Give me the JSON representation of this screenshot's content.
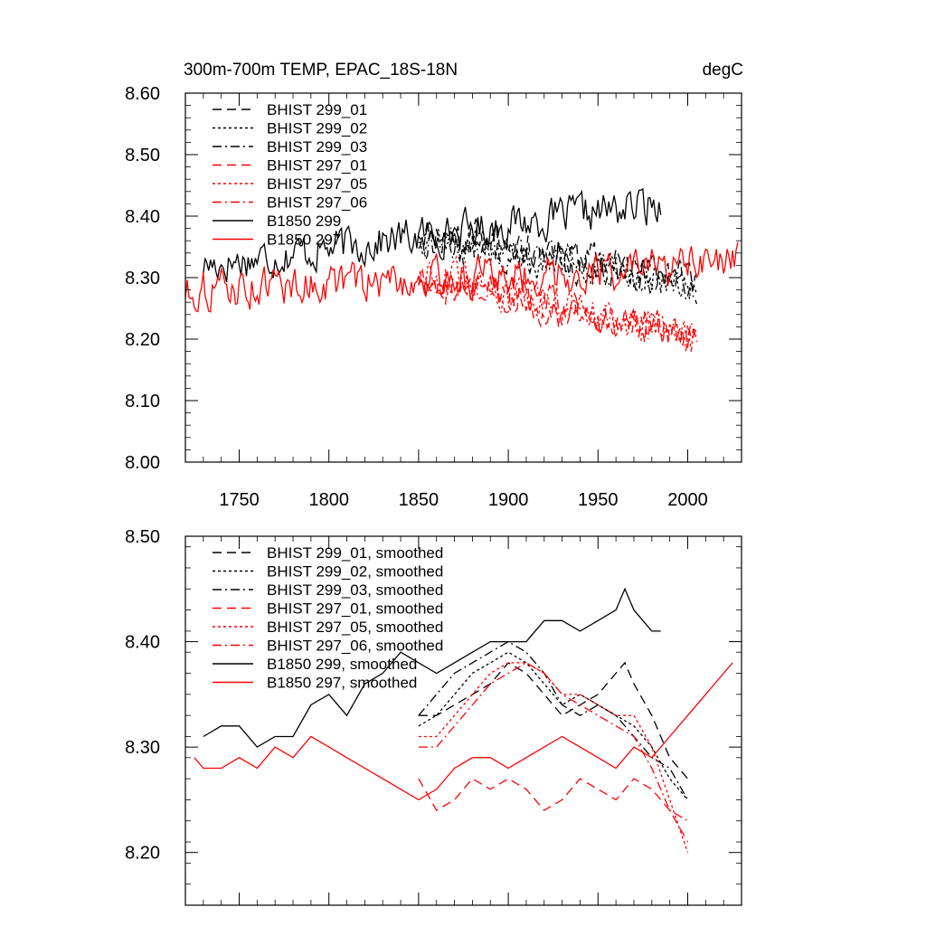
{
  "chart_data": [
    {
      "type": "line",
      "title": "300m-700m TEMP, EPAC_18S-18N",
      "units": "degC",
      "xlabel": "",
      "ylabel": "",
      "xlim": [
        1720,
        2030
      ],
      "ylim": [
        8.0,
        8.6
      ],
      "x_ticks": [
        1750,
        1800,
        1850,
        1900,
        1950,
        2000
      ],
      "x_tick_labels": [
        "1750",
        "1800",
        "1850",
        "1900",
        "1950",
        "2000"
      ],
      "y_ticks": [
        8.0,
        8.1,
        8.2,
        8.3,
        8.4,
        8.5,
        8.6
      ],
      "y_tick_labels": [
        "8.00",
        "8.10",
        "8.20",
        "8.30",
        "8.40",
        "8.50",
        "8.60"
      ],
      "legend_position": "top-left",
      "series": [
        {
          "name": "BHIST 299_01",
          "color": "#000000",
          "dash": "long-dash",
          "x_start": 1850,
          "x_end": 2005,
          "base": 8.38,
          "trend": -0.08,
          "amp": 0.045,
          "seed": 11
        },
        {
          "name": "BHIST 299_02",
          "color": "#000000",
          "dash": "dot",
          "x_start": 1850,
          "x_end": 2005,
          "base": 8.37,
          "trend": -0.09,
          "amp": 0.045,
          "seed": 12
        },
        {
          "name": "BHIST 299_03",
          "color": "#000000",
          "dash": "dash-dot",
          "x_start": 1850,
          "x_end": 2005,
          "base": 8.36,
          "trend": -0.07,
          "amp": 0.045,
          "seed": 13
        },
        {
          "name": "BHIST 297_01",
          "color": "#ff0000",
          "dash": "long-dash",
          "x_start": 1850,
          "x_end": 2005,
          "base": 8.3,
          "trend": -0.1,
          "amp": 0.045,
          "seed": 14
        },
        {
          "name": "BHIST 297_05",
          "color": "#ff0000",
          "dash": "dot",
          "x_start": 1850,
          "x_end": 2005,
          "base": 8.31,
          "trend": -0.11,
          "amp": 0.045,
          "seed": 15
        },
        {
          "name": "BHIST 297_06",
          "color": "#ff0000",
          "dash": "dash-dot",
          "x_start": 1850,
          "x_end": 2005,
          "base": 8.3,
          "trend": -0.09,
          "amp": 0.045,
          "seed": 16
        },
        {
          "name": "B1850 299",
          "color": "#000000",
          "dash": "solid",
          "x_start": 1730,
          "x_end": 1985,
          "base": 8.32,
          "trend": 0.1,
          "amp": 0.05,
          "seed": 17
        },
        {
          "name": "B1850 297",
          "color": "#ff0000",
          "dash": "solid",
          "x_start": 1720,
          "x_end": 2028,
          "base": 8.28,
          "trend": 0.04,
          "amp": 0.05,
          "seed": 18
        }
      ]
    },
    {
      "type": "line",
      "title": "",
      "xlabel": "",
      "ylabel": "",
      "xlim": [
        1720,
        2030
      ],
      "ylim": [
        8.15,
        8.5
      ],
      "x_ticks": [
        1750,
        1800,
        1850,
        1900,
        1950,
        2000
      ],
      "x_tick_labels": [],
      "y_ticks": [
        8.2,
        8.3,
        8.4,
        8.5
      ],
      "y_tick_labels": [
        "8.20",
        "8.30",
        "8.40",
        "8.50"
      ],
      "legend_position": "top-left",
      "series": [
        {
          "name": "BHIST 299_01, smoothed",
          "color": "#000000",
          "dash": "long-dash",
          "points": [
            [
              1850,
              8.33
            ],
            [
              1860,
              8.33
            ],
            [
              1870,
              8.34
            ],
            [
              1880,
              8.35
            ],
            [
              1890,
              8.36
            ],
            [
              1900,
              8.38
            ],
            [
              1910,
              8.37
            ],
            [
              1920,
              8.35
            ],
            [
              1930,
              8.33
            ],
            [
              1940,
              8.34
            ],
            [
              1950,
              8.35
            ],
            [
              1960,
              8.37
            ],
            [
              1965,
              8.38
            ],
            [
              1970,
              8.36
            ],
            [
              1980,
              8.33
            ],
            [
              1990,
              8.29
            ],
            [
              2000,
              8.27
            ]
          ]
        },
        {
          "name": "BHIST 299_02, smoothed",
          "color": "#000000",
          "dash": "dot",
          "points": [
            [
              1850,
              8.32
            ],
            [
              1860,
              8.33
            ],
            [
              1870,
              8.35
            ],
            [
              1880,
              8.37
            ],
            [
              1890,
              8.38
            ],
            [
              1900,
              8.39
            ],
            [
              1910,
              8.38
            ],
            [
              1920,
              8.36
            ],
            [
              1930,
              8.34
            ],
            [
              1940,
              8.35
            ],
            [
              1950,
              8.34
            ],
            [
              1960,
              8.33
            ],
            [
              1970,
              8.32
            ],
            [
              1980,
              8.3
            ],
            [
              1990,
              8.27
            ],
            [
              2000,
              8.25
            ]
          ]
        },
        {
          "name": "BHIST 299_03, smoothed",
          "color": "#000000",
          "dash": "dash-dot",
          "points": [
            [
              1850,
              8.33
            ],
            [
              1860,
              8.35
            ],
            [
              1870,
              8.37
            ],
            [
              1880,
              8.38
            ],
            [
              1890,
              8.39
            ],
            [
              1900,
              8.4
            ],
            [
              1910,
              8.39
            ],
            [
              1920,
              8.37
            ],
            [
              1930,
              8.34
            ],
            [
              1940,
              8.33
            ],
            [
              1950,
              8.34
            ],
            [
              1960,
              8.33
            ],
            [
              1970,
              8.31
            ],
            [
              1980,
              8.29
            ],
            [
              1990,
              8.28
            ],
            [
              2000,
              8.25
            ]
          ]
        },
        {
          "name": "BHIST 297_01, smoothed",
          "color": "#ff0000",
          "dash": "long-dash",
          "points": [
            [
              1850,
              8.27
            ],
            [
              1860,
              8.24
            ],
            [
              1870,
              8.25
            ],
            [
              1880,
              8.27
            ],
            [
              1890,
              8.26
            ],
            [
              1900,
              8.27
            ],
            [
              1910,
              8.26
            ],
            [
              1920,
              8.24
            ],
            [
              1930,
              8.25
            ],
            [
              1940,
              8.27
            ],
            [
              1950,
              8.26
            ],
            [
              1960,
              8.25
            ],
            [
              1970,
              8.27
            ],
            [
              1980,
              8.26
            ],
            [
              1990,
              8.24
            ],
            [
              2000,
              8.21
            ]
          ]
        },
        {
          "name": "BHIST 297_05, smoothed",
          "color": "#ff0000",
          "dash": "dot",
          "points": [
            [
              1850,
              8.31
            ],
            [
              1860,
              8.31
            ],
            [
              1870,
              8.33
            ],
            [
              1880,
              8.35
            ],
            [
              1890,
              8.37
            ],
            [
              1900,
              8.38
            ],
            [
              1910,
              8.38
            ],
            [
              1920,
              8.37
            ],
            [
              1930,
              8.35
            ],
            [
              1940,
              8.35
            ],
            [
              1950,
              8.34
            ],
            [
              1960,
              8.33
            ],
            [
              1970,
              8.33
            ],
            [
              1980,
              8.3
            ],
            [
              1990,
              8.25
            ],
            [
              2000,
              8.2
            ]
          ]
        },
        {
          "name": "BHIST 297_06, smoothed",
          "color": "#ff0000",
          "dash": "dash-dot",
          "points": [
            [
              1850,
              8.3
            ],
            [
              1860,
              8.3
            ],
            [
              1870,
              8.32
            ],
            [
              1880,
              8.34
            ],
            [
              1890,
              8.36
            ],
            [
              1900,
              8.37
            ],
            [
              1910,
              8.38
            ],
            [
              1920,
              8.37
            ],
            [
              1930,
              8.35
            ],
            [
              1940,
              8.34
            ],
            [
              1950,
              8.33
            ],
            [
              1960,
              8.32
            ],
            [
              1970,
              8.31
            ],
            [
              1980,
              8.28
            ],
            [
              1990,
              8.24
            ],
            [
              2000,
              8.23
            ]
          ]
        },
        {
          "name": "B1850 299, smoothed",
          "color": "#000000",
          "dash": "solid",
          "points": [
            [
              1730,
              8.31
            ],
            [
              1740,
              8.32
            ],
            [
              1750,
              8.32
            ],
            [
              1760,
              8.3
            ],
            [
              1770,
              8.31
            ],
            [
              1780,
              8.31
            ],
            [
              1790,
              8.34
            ],
            [
              1800,
              8.35
            ],
            [
              1810,
              8.33
            ],
            [
              1820,
              8.36
            ],
            [
              1830,
              8.37
            ],
            [
              1840,
              8.39
            ],
            [
              1850,
              8.38
            ],
            [
              1860,
              8.37
            ],
            [
              1870,
              8.38
            ],
            [
              1880,
              8.39
            ],
            [
              1890,
              8.4
            ],
            [
              1900,
              8.4
            ],
            [
              1910,
              8.4
            ],
            [
              1920,
              8.42
            ],
            [
              1930,
              8.42
            ],
            [
              1940,
              8.41
            ],
            [
              1950,
              8.42
            ],
            [
              1960,
              8.43
            ],
            [
              1965,
              8.45
            ],
            [
              1970,
              8.43
            ],
            [
              1980,
              8.41
            ],
            [
              1985,
              8.41
            ]
          ]
        },
        {
          "name": "B1850 297, smoothed",
          "color": "#ff0000",
          "dash": "solid",
          "points": [
            [
              1725,
              8.29
            ],
            [
              1730,
              8.28
            ],
            [
              1740,
              8.28
            ],
            [
              1750,
              8.29
            ],
            [
              1760,
              8.28
            ],
            [
              1770,
              8.3
            ],
            [
              1780,
              8.29
            ],
            [
              1790,
              8.31
            ],
            [
              1800,
              8.3
            ],
            [
              1810,
              8.29
            ],
            [
              1820,
              8.28
            ],
            [
              1830,
              8.27
            ],
            [
              1840,
              8.26
            ],
            [
              1850,
              8.25
            ],
            [
              1860,
              8.26
            ],
            [
              1870,
              8.28
            ],
            [
              1880,
              8.29
            ],
            [
              1890,
              8.29
            ],
            [
              1900,
              8.28
            ],
            [
              1910,
              8.29
            ],
            [
              1920,
              8.3
            ],
            [
              1930,
              8.31
            ],
            [
              1940,
              8.3
            ],
            [
              1950,
              8.29
            ],
            [
              1960,
              8.28
            ],
            [
              1970,
              8.3
            ],
            [
              1980,
              8.29
            ],
            [
              1990,
              8.31
            ],
            [
              2000,
              8.33
            ],
            [
              2010,
              8.35
            ],
            [
              2020,
              8.37
            ],
            [
              2025,
              8.38
            ]
          ]
        }
      ]
    }
  ]
}
